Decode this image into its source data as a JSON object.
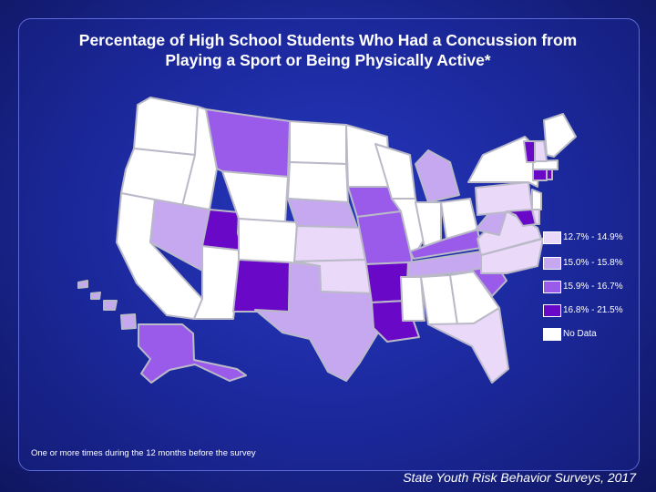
{
  "title": {
    "line1": "Percentage of High School Students Who Had a Concussion from",
    "line2": "Playing a Sport or Being Physically Active*"
  },
  "legend": [
    {
      "label": "12.7% - 14.9%",
      "color": "#ead9f8"
    },
    {
      "label": "15.0% - 15.8%",
      "color": "#c6a8f0"
    },
    {
      "label": "15.9% - 16.7%",
      "color": "#9a5bea"
    },
    {
      "label": "16.8% - 21.5%",
      "color": "#6a08c8"
    },
    {
      "label": "No Data",
      "color": "#ffffff"
    }
  ],
  "footnote": "One or more times during the 12 months before the survey",
  "source": "State Youth Risk Behavior Surveys, 2017",
  "colors": {
    "background": "#1c2a9e",
    "border": "#b9b9c8",
    "text": "#ffffff"
  },
  "states": [
    {
      "id": "WA",
      "category": 4
    },
    {
      "id": "OR",
      "category": 4
    },
    {
      "id": "CA",
      "category": 4
    },
    {
      "id": "ID",
      "category": 4
    },
    {
      "id": "NV",
      "category": 1
    },
    {
      "id": "UT",
      "category": 3
    },
    {
      "id": "AZ",
      "category": 4
    },
    {
      "id": "MT",
      "category": 2
    },
    {
      "id": "WY",
      "category": 4
    },
    {
      "id": "CO",
      "category": 4
    },
    {
      "id": "NM",
      "category": 3
    },
    {
      "id": "ND",
      "category": 4
    },
    {
      "id": "SD",
      "category": 4
    },
    {
      "id": "NE",
      "category": 1
    },
    {
      "id": "KS",
      "category": 0
    },
    {
      "id": "OK",
      "category": 0
    },
    {
      "id": "TX",
      "category": 1
    },
    {
      "id": "MN",
      "category": 4
    },
    {
      "id": "IA",
      "category": 2
    },
    {
      "id": "MO",
      "category": 2
    },
    {
      "id": "AR",
      "category": 3
    },
    {
      "id": "LA",
      "category": 3
    },
    {
      "id": "WI",
      "category": 4
    },
    {
      "id": "IL",
      "category": 4
    },
    {
      "id": "MI",
      "category": 1
    },
    {
      "id": "IN",
      "category": 4
    },
    {
      "id": "OH",
      "category": 4
    },
    {
      "id": "KY",
      "category": 2
    },
    {
      "id": "TN",
      "category": 1
    },
    {
      "id": "MS",
      "category": 4
    },
    {
      "id": "AL",
      "category": 4
    },
    {
      "id": "GA",
      "category": 4
    },
    {
      "id": "FL",
      "category": 0
    },
    {
      "id": "SC",
      "category": 2
    },
    {
      "id": "NC",
      "category": 0
    },
    {
      "id": "VA",
      "category": 0
    },
    {
      "id": "WV",
      "category": 1
    },
    {
      "id": "PA",
      "category": 0
    },
    {
      "id": "NY",
      "category": 4
    },
    {
      "id": "MD",
      "category": 3
    },
    {
      "id": "DE",
      "category": 0
    },
    {
      "id": "NJ",
      "category": 4
    },
    {
      "id": "CT",
      "category": 3
    },
    {
      "id": "RI",
      "category": 3
    },
    {
      "id": "MA",
      "category": 4
    },
    {
      "id": "VT",
      "category": 3
    },
    {
      "id": "NH",
      "category": 0
    },
    {
      "id": "ME",
      "category": 4
    },
    {
      "id": "AK",
      "category": 2
    },
    {
      "id": "HI",
      "category": 1
    }
  ]
}
